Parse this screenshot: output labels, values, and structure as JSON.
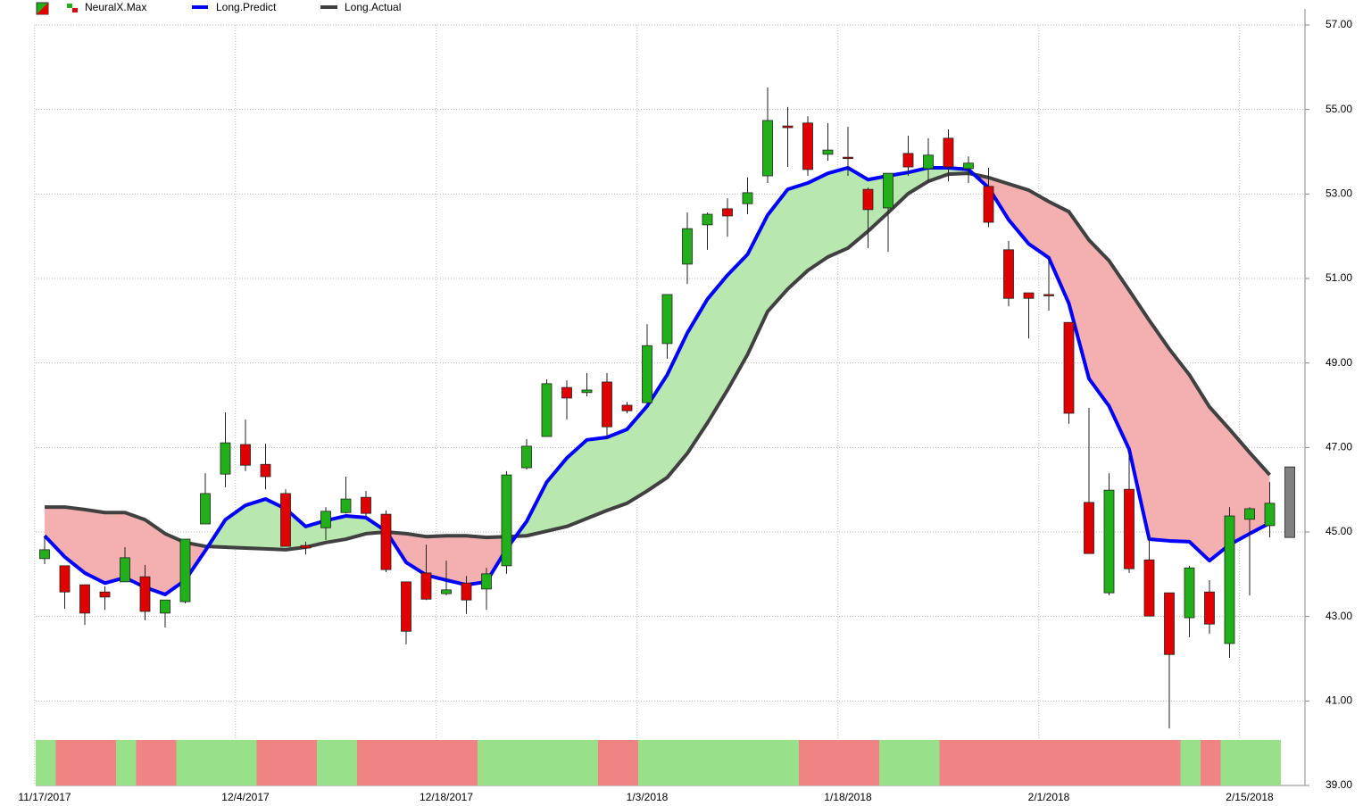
{
  "chart_data": {
    "type": "candlestick",
    "categories": [
      "11/17/2017",
      null,
      null,
      null,
      null,
      null,
      null,
      null,
      null,
      null,
      "12/4/2017",
      null,
      null,
      null,
      null,
      null,
      null,
      null,
      null,
      null,
      "12/18/2017",
      null,
      null,
      null,
      null,
      null,
      null,
      null,
      null,
      null,
      "1/3/2018",
      null,
      null,
      null,
      null,
      null,
      null,
      null,
      null,
      null,
      "1/18/2018",
      null,
      null,
      null,
      null,
      null,
      null,
      null,
      null,
      null,
      "2/1/2018",
      null,
      null,
      null,
      null,
      null,
      null,
      null,
      null,
      null,
      "2/15/2018",
      null,
      null
    ],
    "open": [
      44.37,
      44.2,
      43.75,
      43.58,
      43.82,
      43.94,
      43.08,
      43.35,
      45.19,
      46.37,
      47.07,
      46.6,
      45.91,
      44.68,
      45.1,
      45.46,
      45.82,
      45.42,
      43.82,
      44.03,
      43.54,
      43.79,
      43.65,
      44.2,
      46.52,
      47.26,
      48.42,
      48.3,
      48.55,
      48.0,
      48.06,
      49.46,
      51.34,
      52.27,
      52.65,
      52.77,
      53.43,
      54.61,
      54.68,
      53.94,
      53.87,
      53.11,
      52.67,
      53.96,
      53.6,
      54.32,
      53.6,
      53.18,
      51.68,
      50.66,
      50.62,
      49.96,
      45.7,
      43.56,
      46.01,
      44.34,
      43.56,
      42.97,
      43.58,
      42.36,
      45.3,
      45.15,
      44.87
    ],
    "high": [
      44.91,
      44.2,
      43.75,
      43.71,
      44.64,
      44.22,
      43.39,
      44.83,
      46.39,
      47.83,
      47.66,
      47.09,
      46.01,
      44.77,
      45.59,
      46.31,
      45.97,
      45.51,
      43.82,
      44.7,
      44.32,
      43.96,
      44.15,
      46.44,
      47.2,
      48.61,
      48.59,
      48.76,
      48.76,
      48.08,
      49.92,
      50.62,
      52.56,
      52.56,
      52.9,
      53.39,
      55.52,
      55.06,
      54.84,
      54.68,
      54.59,
      53.15,
      53.49,
      54.38,
      54.32,
      54.53,
      53.89,
      53.62,
      51.89,
      50.66,
      51.46,
      49.96,
      47.94,
      46.39,
      46.86,
      44.89,
      43.56,
      44.2,
      43.86,
      45.59,
      45.59,
      46.18,
      46.54
    ],
    "low": [
      44.24,
      43.18,
      42.8,
      43.16,
      43.82,
      42.91,
      42.74,
      43.31,
      45.19,
      46.06,
      46.44,
      46.01,
      44.66,
      44.47,
      44.81,
      45.44,
      45.34,
      44.05,
      42.34,
      43.39,
      43.5,
      43.06,
      43.16,
      44.01,
      46.48,
      47.26,
      47.66,
      48.21,
      47.2,
      47.81,
      48.06,
      49.1,
      50.87,
      51.68,
      51.99,
      52.52,
      53.26,
      53.64,
      53.43,
      53.79,
      53.43,
      51.72,
      51.63,
      53.43,
      53.28,
      53.3,
      53.26,
      52.22,
      50.34,
      49.58,
      50.24,
      47.56,
      44.49,
      43.5,
      44.03,
      43.01,
      40.35,
      42.51,
      42.59,
      42.02,
      43.5,
      44.87,
      44.87
    ],
    "close": [
      44.58,
      43.58,
      43.08,
      43.46,
      44.39,
      43.12,
      43.39,
      44.83,
      45.91,
      47.11,
      46.58,
      46.31,
      44.66,
      44.62,
      45.49,
      45.78,
      45.44,
      44.11,
      42.65,
      43.41,
      43.63,
      43.39,
      44.01,
      46.35,
      47.03,
      48.51,
      48.17,
      48.36,
      47.49,
      47.87,
      49.41,
      50.62,
      52.18,
      52.52,
      52.48,
      53.03,
      54.74,
      54.57,
      53.58,
      54.04,
      53.85,
      52.63,
      53.49,
      53.64,
      53.92,
      53.64,
      53.73,
      52.33,
      50.53,
      50.53,
      50.6,
      47.81,
      44.49,
      45.99,
      44.13,
      43.01,
      42.1,
      44.15,
      42.82,
      45.38,
      45.55,
      45.68,
      46.54
    ],
    "up_color": "#22b01a",
    "down_color": "#e00000",
    "last_candle_color": "#808080",
    "series": [
      {
        "name": "NeuralX.Max",
        "up_color": "#98e08a",
        "down_color": "#f08484",
        "values": [
          1,
          -1,
          -1,
          -1,
          1,
          -1,
          -1,
          1,
          1,
          1,
          1,
          -1,
          -1,
          -1,
          1,
          1,
          -1,
          -1,
          -1,
          -1,
          -1,
          -1,
          1,
          1,
          1,
          1,
          1,
          1,
          -1,
          -1,
          1,
          1,
          1,
          1,
          1,
          1,
          1,
          1,
          -1,
          -1,
          -1,
          -1,
          1,
          1,
          1,
          -1,
          -1,
          -1,
          -1,
          -1,
          -1,
          -1,
          -1,
          -1,
          -1,
          -1,
          -1,
          1,
          -1,
          1,
          1,
          1,
          null
        ]
      },
      {
        "name": "Long.Predict",
        "color": "#0000ff",
        "values": [
          44.91,
          44.41,
          44.03,
          43.79,
          43.92,
          43.69,
          43.52,
          43.86,
          44.56,
          45.29,
          45.63,
          45.78,
          45.55,
          45.13,
          45.27,
          45.38,
          45.34,
          45.02,
          44.28,
          43.98,
          43.86,
          43.75,
          43.82,
          44.6,
          45.25,
          46.18,
          46.75,
          47.18,
          47.24,
          47.43,
          47.98,
          48.72,
          49.71,
          50.51,
          51.08,
          51.57,
          52.5,
          53.11,
          53.26,
          53.49,
          53.62,
          53.34,
          53.43,
          53.51,
          53.62,
          53.62,
          53.58,
          53.15,
          52.39,
          51.82,
          51.49,
          50.41,
          48.63,
          47.98,
          46.96,
          44.83,
          44.79,
          44.77,
          44.32,
          44.7,
          44.96,
          45.21,
          null
        ]
      },
      {
        "name": "Long.Actual",
        "color": "#404040",
        "values": [
          45.59,
          45.59,
          45.53,
          45.46,
          45.46,
          45.29,
          44.96,
          44.75,
          44.66,
          44.64,
          44.62,
          44.6,
          44.58,
          44.64,
          44.75,
          44.83,
          44.96,
          45.0,
          44.96,
          44.89,
          44.91,
          44.91,
          44.87,
          44.89,
          44.91,
          45.02,
          45.13,
          45.32,
          45.51,
          45.68,
          45.97,
          46.29,
          46.86,
          47.58,
          48.36,
          49.2,
          50.22,
          50.75,
          51.19,
          51.51,
          51.72,
          52.12,
          52.56,
          53.01,
          53.3,
          53.47,
          53.49,
          53.39,
          53.24,
          53.09,
          52.82,
          52.58,
          51.91,
          51.42,
          50.72,
          50.01,
          49.33,
          48.72,
          47.96,
          47.43,
          46.88,
          46.35,
          null
        ]
      }
    ],
    "fill_up_color": "#b8e8b0",
    "fill_down_color": "#f4b0b0",
    "ylim": [
      39,
      57
    ],
    "yticks": [
      {
        "value": 39,
        "label": "39.00"
      },
      {
        "value": 41,
        "label": "41.00"
      },
      {
        "value": 43,
        "label": "43.00"
      },
      {
        "value": 45,
        "label": "45.00"
      },
      {
        "value": 47,
        "label": "47.00"
      },
      {
        "value": 49,
        "label": "49.00"
      },
      {
        "value": 51,
        "label": "51.00"
      },
      {
        "value": 53,
        "label": "53.00"
      },
      {
        "value": 55,
        "label": "55.00"
      },
      {
        "value": 57,
        "label": "57.00"
      }
    ],
    "grid": true
  }
}
